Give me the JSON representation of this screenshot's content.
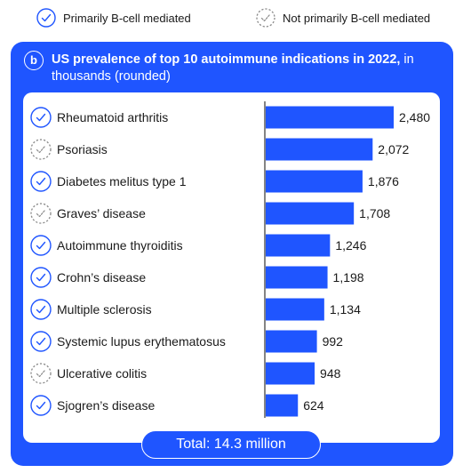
{
  "legend": {
    "b_cell": "Primarily B-cell mediated",
    "non_b_cell": "Not primarily B-cell mediated"
  },
  "panel": {
    "badge": "b",
    "title_bold": "US prevalence of top 10 autoimmune indications in 2022,",
    "title_rest": " in thousands (rounded)",
    "total": "Total: 14.3 million"
  },
  "colors": {
    "panel": "#1f55ff",
    "bar": "#1f55ff",
    "check_icon": "#1f55ff"
  },
  "chart_data": {
    "type": "bar",
    "orientation": "horizontal",
    "title": "US prevalence of top 10 autoimmune indications in 2022, in thousands (rounded)",
    "categories": [
      "Rheumatoid arthritis",
      "Psoriasis",
      "Diabetes melitus type 1",
      "Graves’ disease",
      "Autoimmune thyroiditis",
      "Crohn’s disease",
      "Multiple sclerosis",
      "Systemic lupus erythematosus",
      "Ulcerative colitis",
      "Sjogren’s disease"
    ],
    "values": [
      2480,
      2072,
      1876,
      1708,
      1246,
      1198,
      1134,
      992,
      948,
      624
    ],
    "value_labels": [
      "2,480",
      "2,072",
      "1,876",
      "1,708",
      "1,246",
      "1,198",
      "1,134",
      "992",
      "948",
      "624"
    ],
    "b_cell_mediated": [
      true,
      false,
      true,
      false,
      true,
      true,
      true,
      true,
      false,
      true
    ],
    "icons": [
      "check-circle-solid-icon",
      "check-circle-dashed-icon",
      "check-circle-solid-icon",
      "check-circle-dashed-icon",
      "check-circle-solid-icon",
      "check-circle-solid-icon",
      "check-circle-solid-icon",
      "check-circle-solid-icon",
      "check-circle-dashed-icon",
      "check-circle-solid-icon"
    ],
    "xlim": [
      0,
      2480
    ],
    "grid": false,
    "legend_position": "top"
  }
}
